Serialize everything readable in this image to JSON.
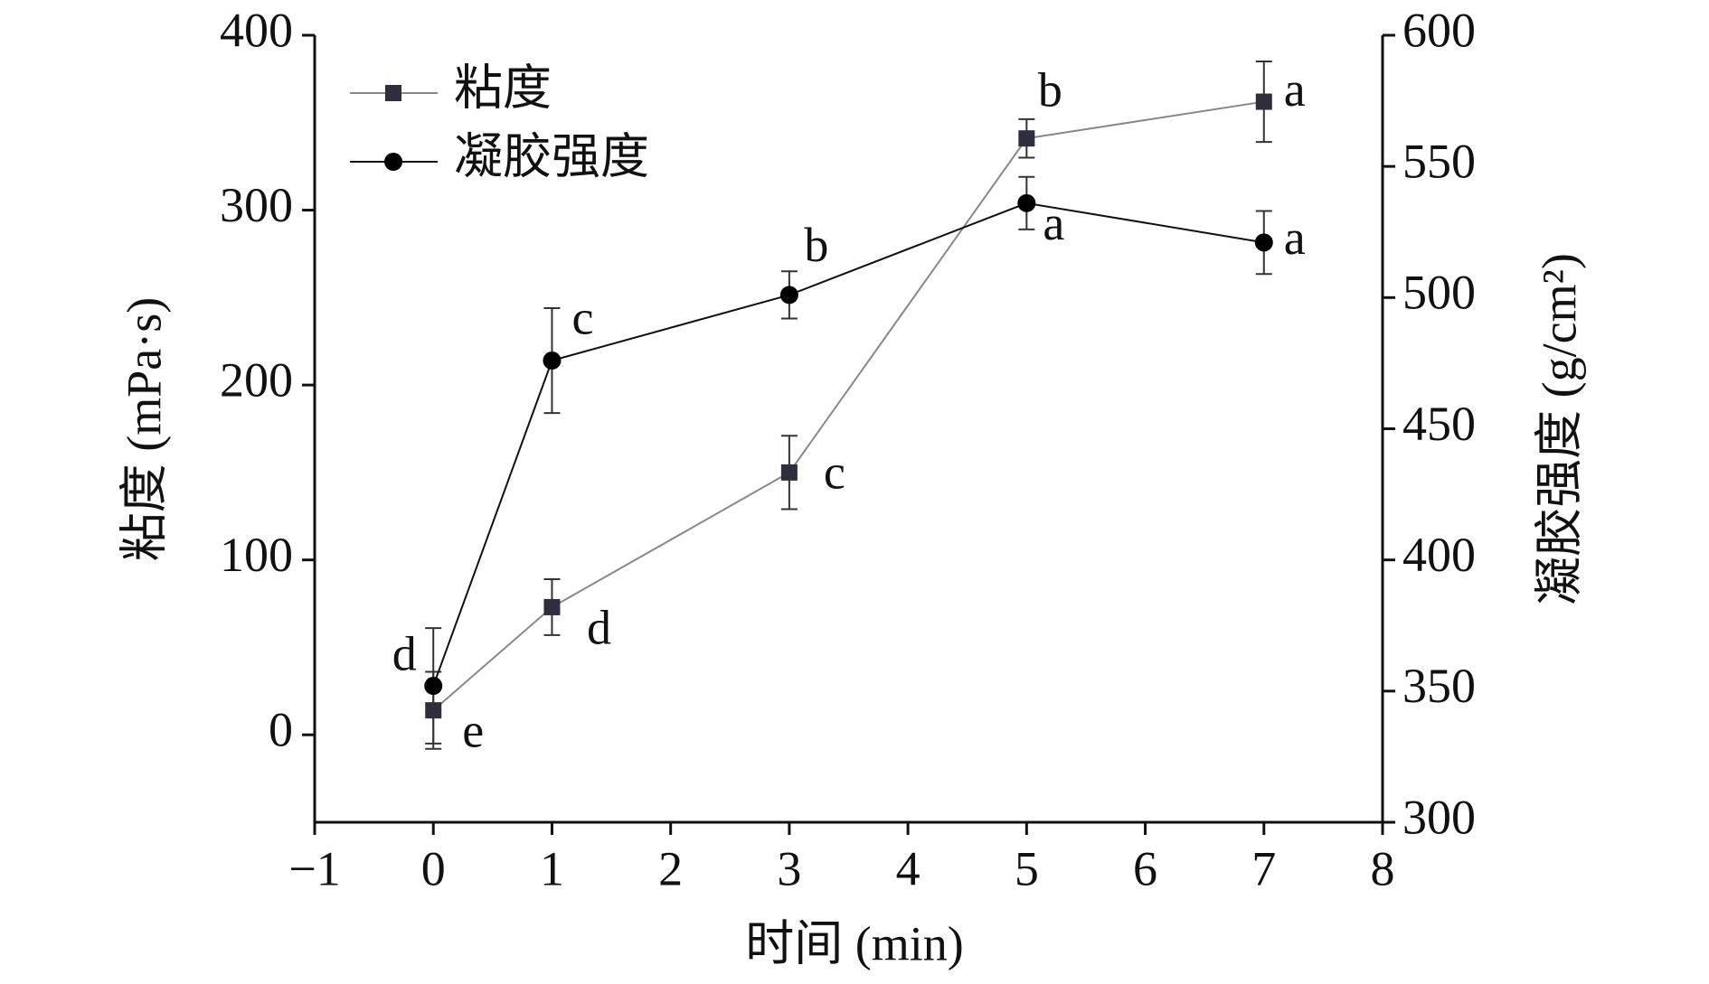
{
  "chart_data": {
    "type": "line",
    "x_label": "时间 (min)",
    "y_label": "粘度 (mPa·s)",
    "y2_label": "凝胶强度 (g/cm²)",
    "x": [
      0,
      1,
      3,
      5,
      7
    ],
    "xlim": [
      -1,
      8
    ],
    "xticks": [
      {
        "value": -1,
        "label": "−1"
      },
      0,
      1,
      2,
      3,
      4,
      5,
      6,
      7,
      8
    ],
    "ylim": [
      -50,
      400
    ],
    "yticks": [
      0,
      100,
      200,
      300,
      400
    ],
    "y2lim": [
      300,
      600
    ],
    "y2ticks": [
      300,
      350,
      400,
      450,
      500,
      550,
      600
    ],
    "legend": "upper-left",
    "series": [
      {
        "name": "粘度",
        "color": "#2e2e3e",
        "line_color": "#888888",
        "marker": "square",
        "values": [
          14,
          73,
          150,
          341,
          362
        ],
        "errors": [
          22,
          16,
          21,
          11,
          23
        ],
        "letters": [
          "e",
          "d",
          "c",
          "b",
          "a"
        ]
      },
      {
        "name": "凝胶强度",
        "color": "#000000",
        "line_color": "#111111",
        "marker": "circle",
        "axis": "y2",
        "values": [
          352,
          476,
          501,
          536,
          521
        ],
        "errors": [
          22,
          20,
          9,
          10,
          12
        ],
        "letters": [
          "d",
          "c",
          "b",
          "a",
          "a"
        ]
      }
    ]
  }
}
